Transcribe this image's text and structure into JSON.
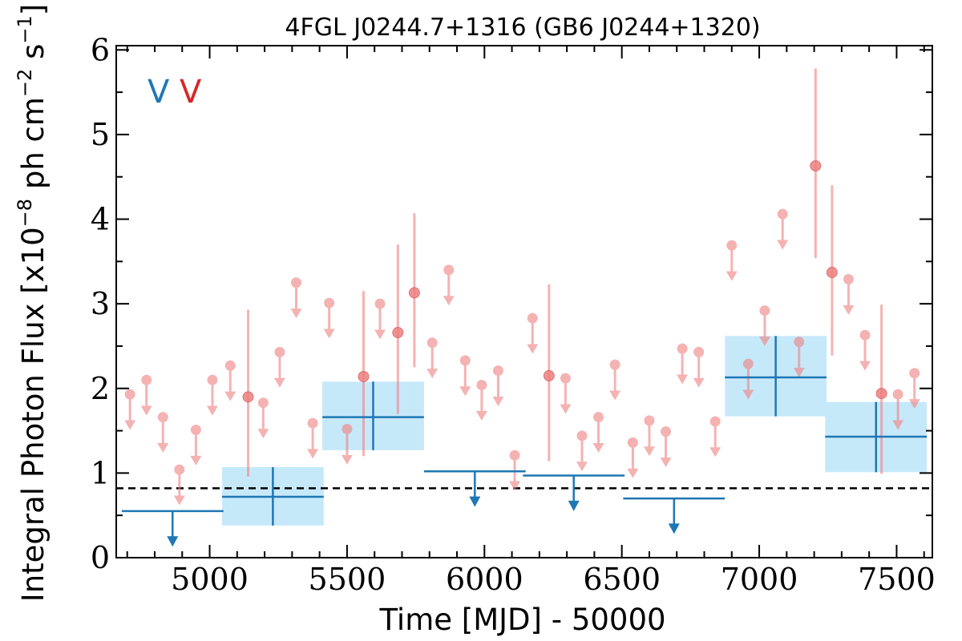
{
  "chart_data": {
    "type": "scatter",
    "title": "4FGL J0244.7+1316 (GB6 J0244+1320)",
    "xlabel": "Time [MJD] - 50000",
    "ylabel": "Integral Photon Flux [x10^-8 ph cm^-2 s^-1]",
    "ylabel_parts": {
      "pre": "Integral Photon Flux [x10",
      "sup1": "−8",
      "mid": " ph cm",
      "sup2": "−2",
      "mid2": " s",
      "sup3": "−1",
      "post": "]"
    },
    "xlim": [
      4660,
      7630
    ],
    "ylim": [
      0,
      6.05
    ],
    "xticks": [
      5000,
      5500,
      6000,
      6500,
      7000,
      7500
    ],
    "yticks": [
      0,
      1,
      2,
      3,
      4,
      5,
      6
    ],
    "grid": false,
    "legend": {
      "placement": "top-left",
      "entries": [
        {
          "label": "V",
          "color": "#1f77b4"
        },
        {
          "label": "V",
          "color": "#d62728"
        }
      ]
    },
    "reference_line": {
      "y": 0.82,
      "style": "dashed",
      "color": "#000000"
    },
    "colors": {
      "fine": "#f08080",
      "coarse": "#1f77b4",
      "coarse_band": "#c6e9fa"
    },
    "fine_bins": {
      "upper_limits": [
        {
          "x": 4710,
          "y": 1.93
        },
        {
          "x": 4770,
          "y": 2.1
        },
        {
          "x": 4830,
          "y": 1.66
        },
        {
          "x": 4890,
          "y": 1.04
        },
        {
          "x": 4950,
          "y": 1.51
        },
        {
          "x": 5010,
          "y": 2.1
        },
        {
          "x": 5075,
          "y": 2.27
        },
        {
          "x": 5195,
          "y": 1.83
        },
        {
          "x": 5255,
          "y": 2.43
        },
        {
          "x": 5315,
          "y": 3.25
        },
        {
          "x": 5375,
          "y": 1.59
        },
        {
          "x": 5435,
          "y": 3.01
        },
        {
          "x": 5500,
          "y": 1.52
        },
        {
          "x": 5620,
          "y": 3.0
        },
        {
          "x": 5810,
          "y": 2.54
        },
        {
          "x": 5870,
          "y": 3.4
        },
        {
          "x": 5930,
          "y": 2.33
        },
        {
          "x": 5990,
          "y": 2.04
        },
        {
          "x": 6050,
          "y": 2.21
        },
        {
          "x": 6110,
          "y": 1.21
        },
        {
          "x": 6175,
          "y": 2.83
        },
        {
          "x": 6295,
          "y": 2.12
        },
        {
          "x": 6355,
          "y": 1.44
        },
        {
          "x": 6415,
          "y": 1.66
        },
        {
          "x": 6475,
          "y": 2.28
        },
        {
          "x": 6540,
          "y": 1.36
        },
        {
          "x": 6600,
          "y": 1.62
        },
        {
          "x": 6660,
          "y": 1.49
        },
        {
          "x": 6720,
          "y": 2.47
        },
        {
          "x": 6780,
          "y": 2.43
        },
        {
          "x": 6840,
          "y": 1.61
        },
        {
          "x": 6900,
          "y": 3.69
        },
        {
          "x": 6960,
          "y": 2.29
        },
        {
          "x": 7020,
          "y": 2.92
        },
        {
          "x": 7085,
          "y": 4.06
        },
        {
          "x": 7145,
          "y": 2.55
        },
        {
          "x": 7325,
          "y": 3.29
        },
        {
          "x": 7385,
          "y": 2.63
        },
        {
          "x": 7505,
          "y": 1.93
        },
        {
          "x": 7565,
          "y": 2.18
        }
      ],
      "detections": [
        {
          "x": 5140,
          "y": 1.9,
          "lo": 0.96,
          "hi": 2.93
        },
        {
          "x": 5560,
          "y": 2.14,
          "lo": 1.2,
          "hi": 3.15
        },
        {
          "x": 5685,
          "y": 2.66,
          "lo": 1.7,
          "hi": 3.7
        },
        {
          "x": 5745,
          "y": 3.13,
          "lo": 2.25,
          "hi": 4.07
        },
        {
          "x": 6235,
          "y": 2.15,
          "lo": 1.14,
          "hi": 3.23
        },
        {
          "x": 7205,
          "y": 4.63,
          "lo": 3.54,
          "hi": 5.78
        },
        {
          "x": 7265,
          "y": 3.37,
          "lo": 2.39,
          "hi": 4.4
        },
        {
          "x": 7445,
          "y": 1.94,
          "lo": 0.99,
          "hi": 2.99
        }
      ]
    },
    "coarse_bins": {
      "upper_limits": [
        {
          "x0": 4680,
          "x1": 5050,
          "y": 0.55,
          "arrow_x": 4865
        },
        {
          "x0": 5780,
          "x1": 6150,
          "y": 1.02,
          "arrow_x": 5965
        },
        {
          "x0": 6140,
          "x1": 6510,
          "y": 0.97,
          "arrow_x": 6325
        },
        {
          "x0": 6505,
          "x1": 6875,
          "y": 0.7,
          "arrow_x": 6690
        }
      ],
      "detections": [
        {
          "x0": 5045,
          "x1": 5415,
          "x": 5230,
          "y": 0.72,
          "lo": 0.38,
          "hi": 1.07
        },
        {
          "x0": 5410,
          "x1": 5780,
          "x": 5595,
          "y": 1.66,
          "lo": 1.27,
          "hi": 2.08
        },
        {
          "x0": 6875,
          "x1": 7245,
          "x": 7060,
          "y": 2.13,
          "lo": 1.67,
          "hi": 2.62
        },
        {
          "x0": 7240,
          "x1": 7610,
          "x": 7425,
          "y": 1.43,
          "lo": 1.01,
          "hi": 1.84
        }
      ]
    }
  }
}
